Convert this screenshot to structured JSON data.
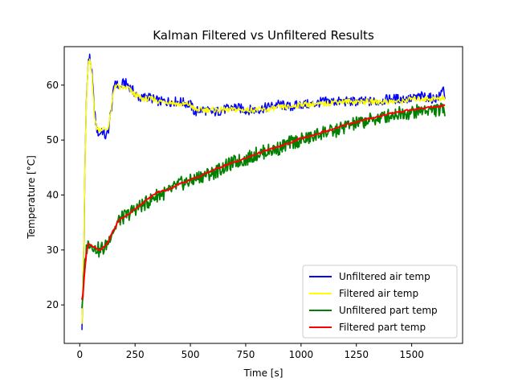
{
  "chart_data": {
    "type": "line",
    "title": "Kalman Filtered vs Unfiltered Results",
    "xlabel": "Time [s]",
    "ylabel": "Temperature [°C]",
    "xlim": [
      -70,
      1730
    ],
    "ylim": [
      13,
      67
    ],
    "xticks": [
      0,
      250,
      500,
      750,
      1000,
      1250,
      1500
    ],
    "yticks": [
      20,
      30,
      40,
      50,
      60
    ],
    "grid": false,
    "legend_position": "lower-right",
    "series": [
      {
        "name": "Unfiltered air temp",
        "color": "#0000ff",
        "x": [
          10,
          15,
          20,
          25,
          30,
          35,
          40,
          45,
          50,
          55,
          60,
          65,
          70,
          75,
          80,
          90,
          100,
          110,
          120,
          130,
          140,
          150,
          160,
          170,
          180,
          190,
          200,
          220,
          240,
          260,
          280,
          300,
          330,
          360,
          400,
          450,
          500,
          520,
          540,
          560,
          600,
          650,
          700,
          750,
          800,
          850,
          900,
          950,
          1000,
          1050,
          1100,
          1150,
          1200,
          1250,
          1300,
          1350,
          1400,
          1450,
          1500,
          1550,
          1600,
          1630,
          1640,
          1650
        ],
        "y": [
          16,
          24,
          35,
          48,
          57,
          62,
          64.5,
          65,
          64,
          62,
          59,
          56,
          54,
          52.5,
          51.5,
          51,
          52,
          51,
          50.5,
          52,
          55,
          58,
          61,
          60,
          59.5,
          60,
          60.5,
          60,
          59,
          58,
          57.5,
          58,
          57.5,
          57,
          57,
          57,
          56.5,
          55,
          55.5,
          55.5,
          55,
          55.5,
          56,
          55.5,
          55.5,
          56,
          56.5,
          56,
          56.5,
          56.5,
          57,
          57,
          57,
          57,
          57,
          57,
          57.5,
          57.5,
          57.5,
          58,
          57.5,
          58,
          60,
          58
        ]
      },
      {
        "name": "Filtered air temp",
        "color": "#ffff00",
        "x": [
          10,
          15,
          20,
          25,
          30,
          35,
          40,
          45,
          50,
          55,
          60,
          65,
          70,
          75,
          80,
          90,
          100,
          110,
          120,
          130,
          140,
          150,
          160,
          170,
          180,
          190,
          200,
          220,
          240,
          260,
          280,
          300,
          330,
          360,
          400,
          450,
          500,
          520,
          540,
          560,
          600,
          650,
          700,
          750,
          800,
          850,
          900,
          950,
          1000,
          1050,
          1100,
          1150,
          1200,
          1250,
          1300,
          1350,
          1400,
          1450,
          1500,
          1550,
          1600,
          1630,
          1640,
          1650
        ],
        "y": [
          17,
          25,
          36,
          48,
          56.5,
          61.5,
          64,
          64.5,
          63.5,
          61.5,
          58.5,
          55.5,
          53.5,
          52.5,
          52,
          52,
          52,
          52,
          52,
          52.5,
          55,
          58,
          60,
          60,
          59.5,
          59.5,
          59.5,
          59.5,
          58.5,
          58,
          57.5,
          57.5,
          57.5,
          57,
          57,
          56.5,
          56.5,
          55.5,
          55.5,
          55.5,
          55.5,
          55.5,
          55.5,
          55.5,
          55.5,
          55.5,
          56,
          56,
          56.5,
          56.5,
          56.5,
          57,
          57,
          57,
          57,
          57,
          57,
          57,
          57.5,
          57.5,
          57.5,
          57.5,
          58,
          57.5
        ]
      },
      {
        "name": "Unfiltered part temp",
        "color": "#008000",
        "x": [
          10,
          15,
          20,
          25,
          30,
          35,
          40,
          45,
          50,
          60,
          70,
          80,
          90,
          100,
          110,
          120,
          130,
          140,
          150,
          160,
          170,
          180,
          200,
          220,
          250,
          300,
          350,
          400,
          450,
          500,
          550,
          600,
          650,
          700,
          750,
          800,
          850,
          900,
          950,
          1000,
          1050,
          1100,
          1150,
          1200,
          1250,
          1300,
          1350,
          1400,
          1450,
          1500,
          1550,
          1600,
          1650
        ],
        "y": [
          20,
          22,
          26,
          28,
          30,
          31,
          31,
          31.5,
          31,
          31,
          30,
          30.5,
          29.5,
          30.5,
          30,
          31,
          31.5,
          33,
          33.5,
          34,
          35,
          35.5,
          36,
          36.5,
          37.5,
          38.5,
          40,
          40.5,
          42,
          42.5,
          43.5,
          44,
          45,
          46,
          46.5,
          47.5,
          48,
          48.5,
          49.5,
          50,
          50.5,
          51.5,
          51.5,
          52.5,
          53,
          53.5,
          54,
          54.5,
          55,
          55,
          55.5,
          55.5,
          55.5
        ]
      },
      {
        "name": "Filtered part temp",
        "color": "#ff0000",
        "x": [
          10,
          15,
          20,
          25,
          30,
          35,
          40,
          45,
          50,
          60,
          70,
          80,
          90,
          100,
          110,
          120,
          130,
          140,
          150,
          160,
          170,
          180,
          200,
          220,
          250,
          300,
          350,
          400,
          450,
          500,
          550,
          600,
          650,
          700,
          750,
          800,
          850,
          900,
          950,
          1000,
          1050,
          1100,
          1150,
          1200,
          1250,
          1300,
          1350,
          1400,
          1450,
          1500,
          1550,
          1600,
          1650
        ],
        "y": [
          21,
          22,
          25,
          27.5,
          29.5,
          30.5,
          31,
          31,
          31,
          30.5,
          30.5,
          30.2,
          30,
          30.2,
          30.5,
          31,
          31.5,
          32.5,
          33.5,
          34,
          35,
          35.5,
          36,
          36.5,
          37.5,
          39,
          40.5,
          41,
          42,
          42.8,
          43.5,
          44.5,
          45.3,
          46,
          46.7,
          47.5,
          48.2,
          48.8,
          49.5,
          50.3,
          50.8,
          51.5,
          52,
          52.8,
          53.3,
          53.8,
          54.3,
          54.8,
          55.2,
          55.5,
          55.8,
          56,
          56.3
        ]
      }
    ]
  }
}
